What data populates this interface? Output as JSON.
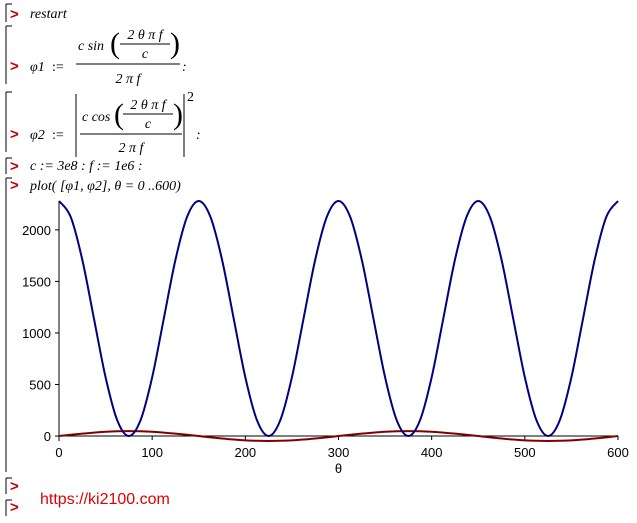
{
  "prompt": ">",
  "inputs": {
    "restart": "restart",
    "phi1": {
      "lhs": "φ1",
      "assign": ":=",
      "numerator": "c sin",
      "inner_numerator": "2 θ π f",
      "inner_denominator": "c",
      "denominator": "2 π f",
      "end": ":"
    },
    "phi2": {
      "lhs": "φ2",
      "assign": ":=",
      "numerator": "c cos",
      "inner_numerator": "2 θ π f",
      "inner_denominator": "c",
      "denominator": "2 π f",
      "power": "2",
      "end": ":"
    },
    "constants": "c := 3e8 : f := 1e6 :",
    "plot_command": "plot( [φ1, φ2], θ = 0 ..600)"
  },
  "watermark": "https://ki2100.com",
  "chart_data": {
    "type": "line",
    "x_label": "θ",
    "x": [
      0,
      12.5,
      25,
      37.5,
      50,
      62.5,
      75,
      87.5,
      100,
      112.5,
      125,
      137.5,
      150,
      162.5,
      175,
      187.5,
      200,
      212.5,
      225,
      237.5,
      250,
      262.5,
      275,
      287.5,
      300,
      312.5,
      325,
      337.5,
      350,
      362.5,
      375,
      387.5,
      400,
      412.5,
      425,
      437.5,
      450,
      462.5,
      475,
      487.5,
      500,
      512.5,
      525,
      537.5,
      550,
      562.5,
      575,
      587.5,
      600
    ],
    "series": [
      {
        "color": "#800000",
        "values": [
          0,
          12.4,
          23.9,
          33.8,
          41.4,
          46.1,
          47.7,
          46.1,
          41.4,
          33.8,
          23.9,
          12.4,
          0,
          -12.4,
          -23.9,
          -33.8,
          -41.4,
          -46.1,
          -47.7,
          -46.1,
          -41.4,
          -33.8,
          -23.9,
          -12.4,
          0,
          12.4,
          23.9,
          33.8,
          41.4,
          46.1,
          47.7,
          46.1,
          41.4,
          33.8,
          23.9,
          12.4,
          0,
          -12.4,
          -23.9,
          -33.8,
          -41.4,
          -46.1,
          -47.7,
          -46.1,
          -41.4,
          -33.8,
          -23.9,
          -12.4,
          0
        ]
      },
      {
        "color": "#000080",
        "values": [
          2280,
          2127,
          1710,
          1140,
          570,
          153,
          0,
          153,
          570,
          1140,
          1710,
          2127,
          2280,
          2127,
          1710,
          1140,
          570,
          153,
          0,
          153,
          570,
          1140,
          1710,
          2127,
          2280,
          2127,
          1710,
          1140,
          570,
          153,
          0,
          153,
          570,
          1140,
          1710,
          2127,
          2280,
          2127,
          1710,
          1140,
          570,
          153,
          0,
          153,
          570,
          1140,
          1710,
          2127,
          2280
        ]
      }
    ],
    "xlim": [
      0,
      600
    ],
    "xticks": [
      0,
      100,
      200,
      300,
      400,
      500,
      600
    ],
    "ylim": [
      -48,
      2280
    ],
    "yticks": [
      0,
      500,
      1000,
      1500,
      2000
    ]
  }
}
